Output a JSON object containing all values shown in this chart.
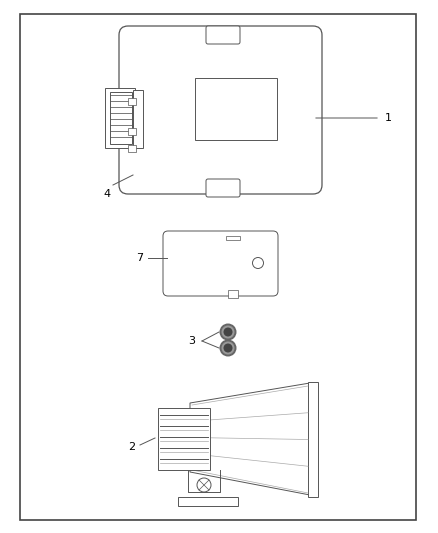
{
  "bg_color": "#ffffff",
  "border_color": "#555555",
  "line_color": "#555555",
  "label_1": "1",
  "label_2": "2",
  "label_3": "3",
  "label_4": "4",
  "label_7": "7",
  "fig_width": 4.38,
  "fig_height": 5.33,
  "dpi": 100
}
